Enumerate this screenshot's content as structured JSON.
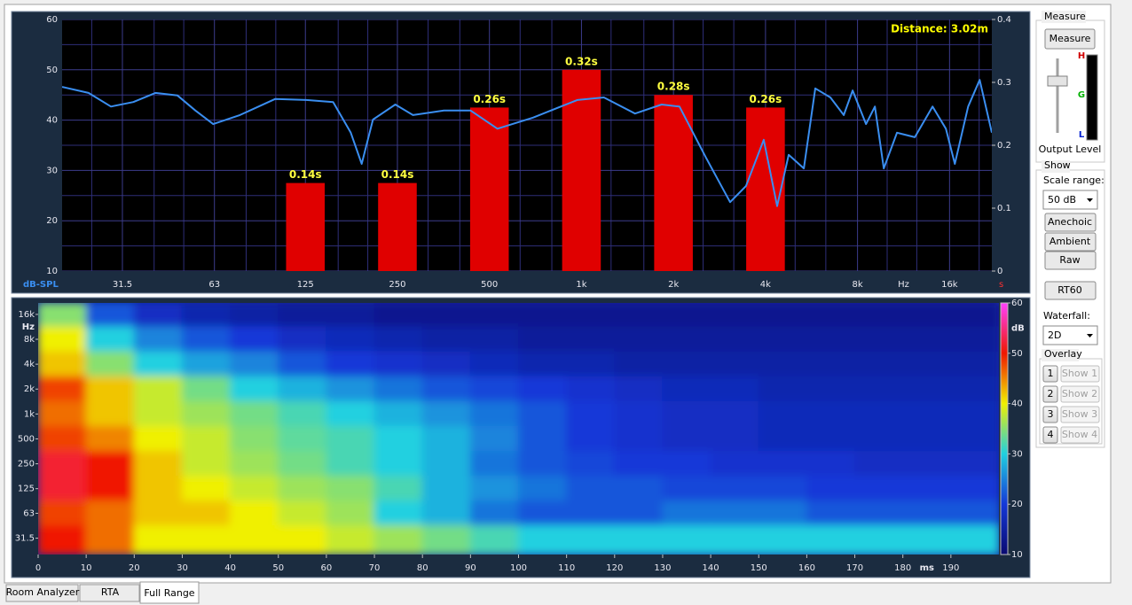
{
  "chart_data": [
    {
      "type": "line",
      "x_scale": "log",
      "xlim": [
        20,
        22000
      ],
      "xticks": [
        31.5,
        63,
        125,
        250,
        500,
        {
          "value": 1000,
          "label": "1k"
        },
        {
          "value": 2000,
          "label": "2k"
        },
        {
          "value": 4000,
          "label": "4k"
        },
        {
          "value": 8000,
          "label": "8k"
        },
        {
          "value": 16000,
          "label": "16k"
        }
      ],
      "xminorticks": [
        25,
        40,
        50,
        80,
        100,
        160,
        200,
        315,
        400,
        630,
        800,
        1250,
        1600,
        2500,
        3150,
        5000,
        6300,
        10000,
        12500,
        20000
      ],
      "xlabel": "Hz",
      "ylabel": "dB-SPL",
      "ylim": [
        10,
        60
      ],
      "yticks": [
        10,
        20,
        30,
        40,
        50,
        60
      ],
      "yminorticks": [
        15,
        25,
        35,
        45,
        55
      ],
      "y2label": "s",
      "y2lim": [
        0,
        0.4
      ],
      "y2ticks": [
        0,
        0.1,
        0.2,
        0.3,
        0.4
      ],
      "grid": true,
      "annotation": "Distance: 3.02m",
      "series": [
        {
          "type": "line",
          "color": "#3a8ef0",
          "x": [
            20,
            24.4,
            28.9,
            34.2,
            40.4,
            47.7,
            54.6,
            62.4,
            76.3,
            99.6,
            126,
            154,
            176,
            191,
            208,
            246,
            281,
            355,
            434,
            531,
            694,
            969,
            1184,
            1497,
            1829,
            2092,
            2556,
            3064,
            3454,
            3948,
            4366,
            4764,
            5338,
            5820,
            6522,
            7210,
            7710,
            8528,
            9116,
            9748,
            10772,
            12316,
            14076,
            15566,
            16646,
            18404,
            20072,
            22000
          ],
          "values": [
            46.6,
            45.4,
            42.7,
            43.6,
            45.4,
            44.9,
            41.9,
            39.2,
            41,
            44.2,
            44,
            43.6,
            37.5,
            31.3,
            40.1,
            43.1,
            41,
            41.9,
            41.9,
            38.3,
            40.5,
            44,
            44.5,
            41.3,
            43.1,
            42.7,
            32.5,
            23.7,
            26.9,
            36.1,
            22.9,
            33.1,
            30.4,
            46.3,
            44.5,
            41,
            45.9,
            39.2,
            42.7,
            30.4,
            37.5,
            36.6,
            42.7,
            38.3,
            31.3,
            42.7,
            48,
            37.5
          ]
        },
        {
          "type": "bar",
          "color": "#e00000",
          "axis": "y2",
          "x": [
            125,
            250,
            500,
            1000,
            2000,
            4000
          ],
          "values": [
            0.14,
            0.14,
            0.26,
            0.32,
            0.28,
            0.26
          ],
          "value_labels": [
            "0.14s",
            "0.14s",
            "0.26s",
            "0.32s",
            "0.28s",
            "0.26s"
          ]
        }
      ]
    },
    {
      "type": "heatmap",
      "xlim": [
        0,
        200
      ],
      "xticks": [
        0,
        10,
        20,
        30,
        40,
        50,
        60,
        70,
        80,
        90,
        100,
        110,
        120,
        130,
        140,
        150,
        160,
        170,
        180,
        190
      ],
      "xlabel": "ms",
      "y_scale": "log",
      "ylim": [
        20,
        22000
      ],
      "ylabel": "Hz",
      "yticks": [
        31.5,
        63,
        125,
        250,
        500,
        {
          "value": 1000,
          "label": "1k"
        },
        {
          "value": 2000,
          "label": "2k"
        },
        {
          "value": 4000,
          "label": "4k"
        },
        {
          "value": 8000,
          "label": "8k"
        },
        {
          "value": 16000,
          "label": "16k"
        }
      ],
      "x": [
        0,
        10,
        20,
        30,
        40,
        50,
        60,
        70,
        80,
        90,
        100,
        110,
        120,
        130,
        140,
        150,
        160,
        170,
        180,
        190
      ],
      "y": [
        16000,
        8000,
        4000,
        2000,
        1000,
        500,
        250,
        125,
        63,
        31.5
      ],
      "z": [
        [
          35,
          22,
          18,
          16,
          15,
          14,
          14,
          13,
          13,
          13,
          13,
          13,
          13,
          13,
          13,
          13,
          13,
          13,
          13,
          13
        ],
        [
          40,
          30,
          25,
          22,
          20,
          18,
          17,
          16,
          15,
          15,
          14,
          14,
          14,
          14,
          14,
          14,
          14,
          14,
          14,
          14
        ],
        [
          42,
          35,
          30,
          27,
          25,
          22,
          20,
          19,
          18,
          17,
          16,
          16,
          15,
          15,
          15,
          15,
          15,
          15,
          15,
          15
        ],
        [
          48,
          42,
          38,
          34,
          30,
          28,
          26,
          24,
          22,
          21,
          20,
          19,
          18,
          17,
          17,
          16,
          16,
          16,
          16,
          16
        ],
        [
          46,
          42,
          38,
          36,
          34,
          32,
          30,
          28,
          26,
          24,
          22,
          20,
          19,
          18,
          18,
          17,
          17,
          17,
          17,
          17
        ],
        [
          48,
          45,
          40,
          38,
          35,
          33,
          32,
          30,
          28,
          25,
          22,
          20,
          19,
          18,
          18,
          17,
          17,
          17,
          17,
          17
        ],
        [
          52,
          50,
          42,
          38,
          36,
          34,
          32,
          30,
          28,
          24,
          22,
          21,
          20,
          20,
          19,
          19,
          19,
          18,
          18,
          18
        ],
        [
          52,
          50,
          42,
          40,
          38,
          36,
          35,
          32,
          28,
          26,
          24,
          22,
          22,
          21,
          21,
          21,
          20,
          20,
          20,
          20
        ],
        [
          48,
          46,
          42,
          42,
          40,
          38,
          36,
          30,
          28,
          24,
          22,
          22,
          22,
          24,
          24,
          24,
          22,
          22,
          22,
          22
        ],
        [
          50,
          46,
          40,
          40,
          40,
          40,
          38,
          36,
          34,
          32,
          30,
          30,
          30,
          30,
          30,
          30,
          30,
          30,
          30,
          30
        ]
      ],
      "zlim": [
        10,
        60
      ],
      "zticks": [
        10,
        20,
        30,
        40,
        50,
        60
      ],
      "zlabel": "dB",
      "colorscale": [
        "#0a0a70",
        "#1438d8",
        "#20d0e0",
        "#f0f000",
        "#f01800",
        "#ff40ff"
      ]
    }
  ],
  "panel": {
    "measure_group": "Measure",
    "measure_button": "Measure",
    "meter_labels": [
      "H",
      "G",
      "L"
    ],
    "output_level": "Output Level",
    "show_group": "Show",
    "scale_range_label": "Scale range:",
    "scale_range_value": "50 dB",
    "view_buttons": [
      "Anechoic",
      "Ambient",
      "Raw"
    ],
    "rt60_button": "RT60",
    "waterfall_label": "Waterfall:",
    "waterfall_value": "2D",
    "overlay_group": "Overlay",
    "overlays": [
      {
        "number": "1",
        "button": "Show 1"
      },
      {
        "number": "2",
        "button": "Show 2"
      },
      {
        "number": "3",
        "button": "Show 3"
      },
      {
        "number": "4",
        "button": "Show 4"
      }
    ]
  },
  "tabs": [
    "Room Analyzer",
    "RTA",
    "Full Range"
  ]
}
